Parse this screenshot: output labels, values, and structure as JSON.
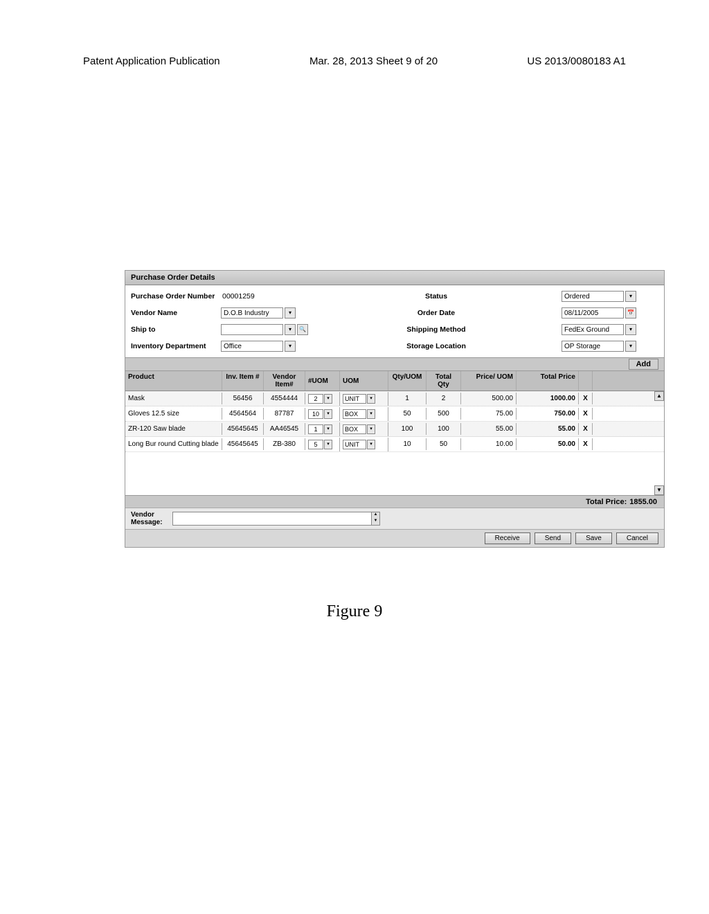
{
  "header": {
    "left": "Patent Application Publication",
    "mid": "Mar. 28, 2013  Sheet 9 of 20",
    "right": "US 2013/0080183 A1"
  },
  "panel": {
    "title": "Purchase Order Details",
    "labels": {
      "po_number": "Purchase Order Number",
      "vendor_name": "Vendor Name",
      "ship_to": "Ship to",
      "inv_dept": "Inventory Department",
      "status": "Status",
      "order_date": "Order Date",
      "ship_method": "Shipping Method",
      "storage": "Storage Location"
    },
    "values": {
      "po_number": "00001259",
      "vendor_name": "D.O.B Industry",
      "ship_to": "",
      "inv_dept": "Office",
      "status": "Ordered",
      "order_date": "08/11/2005",
      "ship_method": "FedEx Ground",
      "storage": "OP Storage"
    },
    "add_label": "Add"
  },
  "grid": {
    "columns": {
      "product": "Product",
      "inv_item": "Inv. Item #",
      "vendor_item": "Vendor Item#",
      "nuom": "#UOM",
      "uom": "UOM",
      "qty_uom": "Qty/UOM",
      "total_qty": "Total Qty",
      "price_uom": "Price/ UOM",
      "total_price": "Total Price"
    },
    "rows": [
      {
        "product": "Mask",
        "inv": "56456",
        "vitem": "4554444",
        "nuom": "2",
        "uom": "UNIT",
        "qtyuom": "1",
        "totqty": "2",
        "price": "500.00",
        "tot": "1000.00"
      },
      {
        "product": "Gloves 12.5 size",
        "inv": "4564564",
        "vitem": "87787",
        "nuom": "10",
        "uom": "BOX",
        "qtyuom": "50",
        "totqty": "500",
        "price": "75.00",
        "tot": "750.00"
      },
      {
        "product": "ZR-120 Saw blade",
        "inv": "45645645",
        "vitem": "AA46545",
        "nuom": "1",
        "uom": "BOX",
        "qtyuom": "100",
        "totqty": "100",
        "price": "55.00",
        "tot": "55.00"
      },
      {
        "product": "Long Bur round Cutting blade",
        "inv": "45645645",
        "vitem": "ZB-380",
        "nuom": "5",
        "uom": "UNIT",
        "qtyuom": "10",
        "totqty": "50",
        "price": "10.00",
        "tot": "50.00"
      }
    ],
    "delete_glyph": "X",
    "total_label": "Total Price:",
    "total_value": "1855.00"
  },
  "message": {
    "label": "Vendor Message:"
  },
  "buttons": {
    "receive": "Receive",
    "send": "Send",
    "save": "Save",
    "cancel": "Cancel"
  },
  "caption": "Figure 9"
}
